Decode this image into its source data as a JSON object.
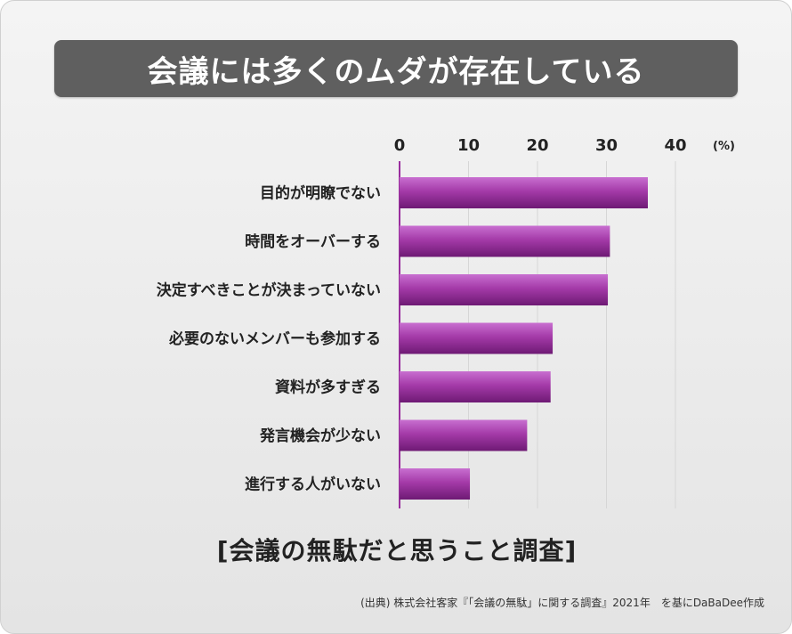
{
  "title": "会議には多くのムダが存在している",
  "subtitle": "[会議の無駄だと思うこと調査]",
  "source": "(出典) 株式会社客家『「会議の無駄」に関する調査』2021年　を基にDaBaDee作成",
  "colors": {
    "bar_light": "#c86fd0",
    "bar_mid": "#a43aa8",
    "bar_dark": "#6e1a74",
    "banner": "#5f5f5f"
  },
  "chart_data": {
    "type": "bar",
    "orientation": "horizontal",
    "categories": [
      "目的が明瞭でない",
      "時間をオーバーする",
      "決定すべきことが決まっていない",
      "必要のないメンバーも参加する",
      "資料が多すぎる",
      "発言機会が少ない",
      "進行する人がいない"
    ],
    "values": [
      36,
      30.5,
      30.2,
      22.2,
      21.9,
      18.5,
      10.2
    ],
    "xlim": [
      0,
      40
    ],
    "xticks": [
      "0",
      "10",
      "20",
      "30",
      "40"
    ],
    "unit": "(%)",
    "grid": true,
    "axis_position": "top"
  }
}
